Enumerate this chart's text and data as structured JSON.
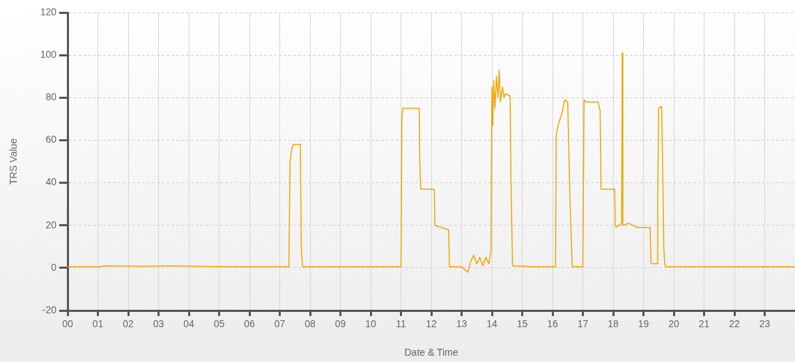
{
  "chart_data": {
    "type": "line",
    "xlabel": "Date & Time",
    "ylabel": "TRS Value",
    "xlim": [
      0,
      24
    ],
    "ylim": [
      -20,
      120
    ],
    "xticks": [
      {
        "value": 0,
        "label": "00"
      },
      {
        "value": 1,
        "label": "01"
      },
      {
        "value": 2,
        "label": "02"
      },
      {
        "value": 3,
        "label": "03"
      },
      {
        "value": 4,
        "label": "04"
      },
      {
        "value": 5,
        "label": "05"
      },
      {
        "value": 6,
        "label": "06"
      },
      {
        "value": 7,
        "label": "07"
      },
      {
        "value": 8,
        "label": "08"
      },
      {
        "value": 9,
        "label": "09"
      },
      {
        "value": 10,
        "label": "10"
      },
      {
        "value": 11,
        "label": "11"
      },
      {
        "value": 12,
        "label": "12"
      },
      {
        "value": 13,
        "label": "13"
      },
      {
        "value": 14,
        "label": "14"
      },
      {
        "value": 15,
        "label": "15"
      },
      {
        "value": 16,
        "label": "16"
      },
      {
        "value": 17,
        "label": "17"
      },
      {
        "value": 18,
        "label": "18"
      },
      {
        "value": 19,
        "label": "19"
      },
      {
        "value": 20,
        "label": "20"
      },
      {
        "value": 21,
        "label": "21"
      },
      {
        "value": 22,
        "label": "22"
      },
      {
        "value": 23,
        "label": "23"
      }
    ],
    "yticks": [
      -20,
      0,
      20,
      40,
      60,
      80,
      100,
      120
    ],
    "grid": true,
    "legend": false,
    "marker": "none",
    "line_style": "solid",
    "series": [
      {
        "color": "#f0a500",
        "x": [
          0,
          1.1,
          1.2,
          2.5,
          3.5,
          5.5,
          7.3,
          7.34,
          7.4,
          7.45,
          7.6,
          7.68,
          7.71,
          7.75,
          9,
          10.5,
          11.0,
          11.03,
          11.06,
          11.3,
          11.6,
          11.62,
          11.65,
          12.1,
          12.12,
          12.55,
          12.57,
          12.6,
          13.0,
          13.2,
          13.3,
          13.4,
          13.5,
          13.6,
          13.7,
          13.8,
          13.9,
          13.97,
          14.0,
          14.03,
          14.06,
          14.1,
          14.15,
          14.2,
          14.24,
          14.28,
          14.35,
          14.4,
          14.45,
          14.55,
          14.6,
          14.63,
          14.68,
          15.5,
          16.1,
          16.12,
          16.2,
          16.3,
          16.4,
          16.5,
          16.58,
          16.65,
          17.0,
          17.04,
          17.1,
          17.5,
          17.57,
          17.6,
          18.05,
          18.07,
          18.1,
          18.28,
          18.3,
          18.32,
          18.35,
          18.5,
          18.8,
          19.2,
          19.22,
          19.25,
          19.45,
          19.47,
          19.5,
          19.6,
          19.65,
          19.67,
          19.7,
          19.75,
          20.5,
          24
        ],
        "values": [
          0.5,
          0.5,
          1,
          0.8,
          1,
          0.5,
          0.5,
          50,
          56,
          58,
          58,
          58,
          10,
          0.5,
          0.5,
          0.5,
          0.5,
          70,
          75,
          75,
          75,
          50,
          37,
          37,
          20,
          18,
          18,
          0.5,
          0.5,
          -2,
          3,
          6,
          2,
          5,
          1,
          5,
          2,
          8,
          85,
          67,
          88,
          75,
          90,
          80,
          93,
          78,
          85,
          80,
          82,
          81,
          81,
          40,
          1,
          0.5,
          0.5,
          62,
          68,
          72,
          79,
          78,
          30,
          0.5,
          0.5,
          79,
          78,
          78,
          74,
          37,
          37,
          20,
          19,
          21,
          101,
          20,
          20,
          21,
          19,
          19,
          19,
          2,
          2,
          32,
          75,
          76,
          32,
          10,
          2,
          0.5,
          0.5,
          0.5
        ]
      }
    ]
  }
}
